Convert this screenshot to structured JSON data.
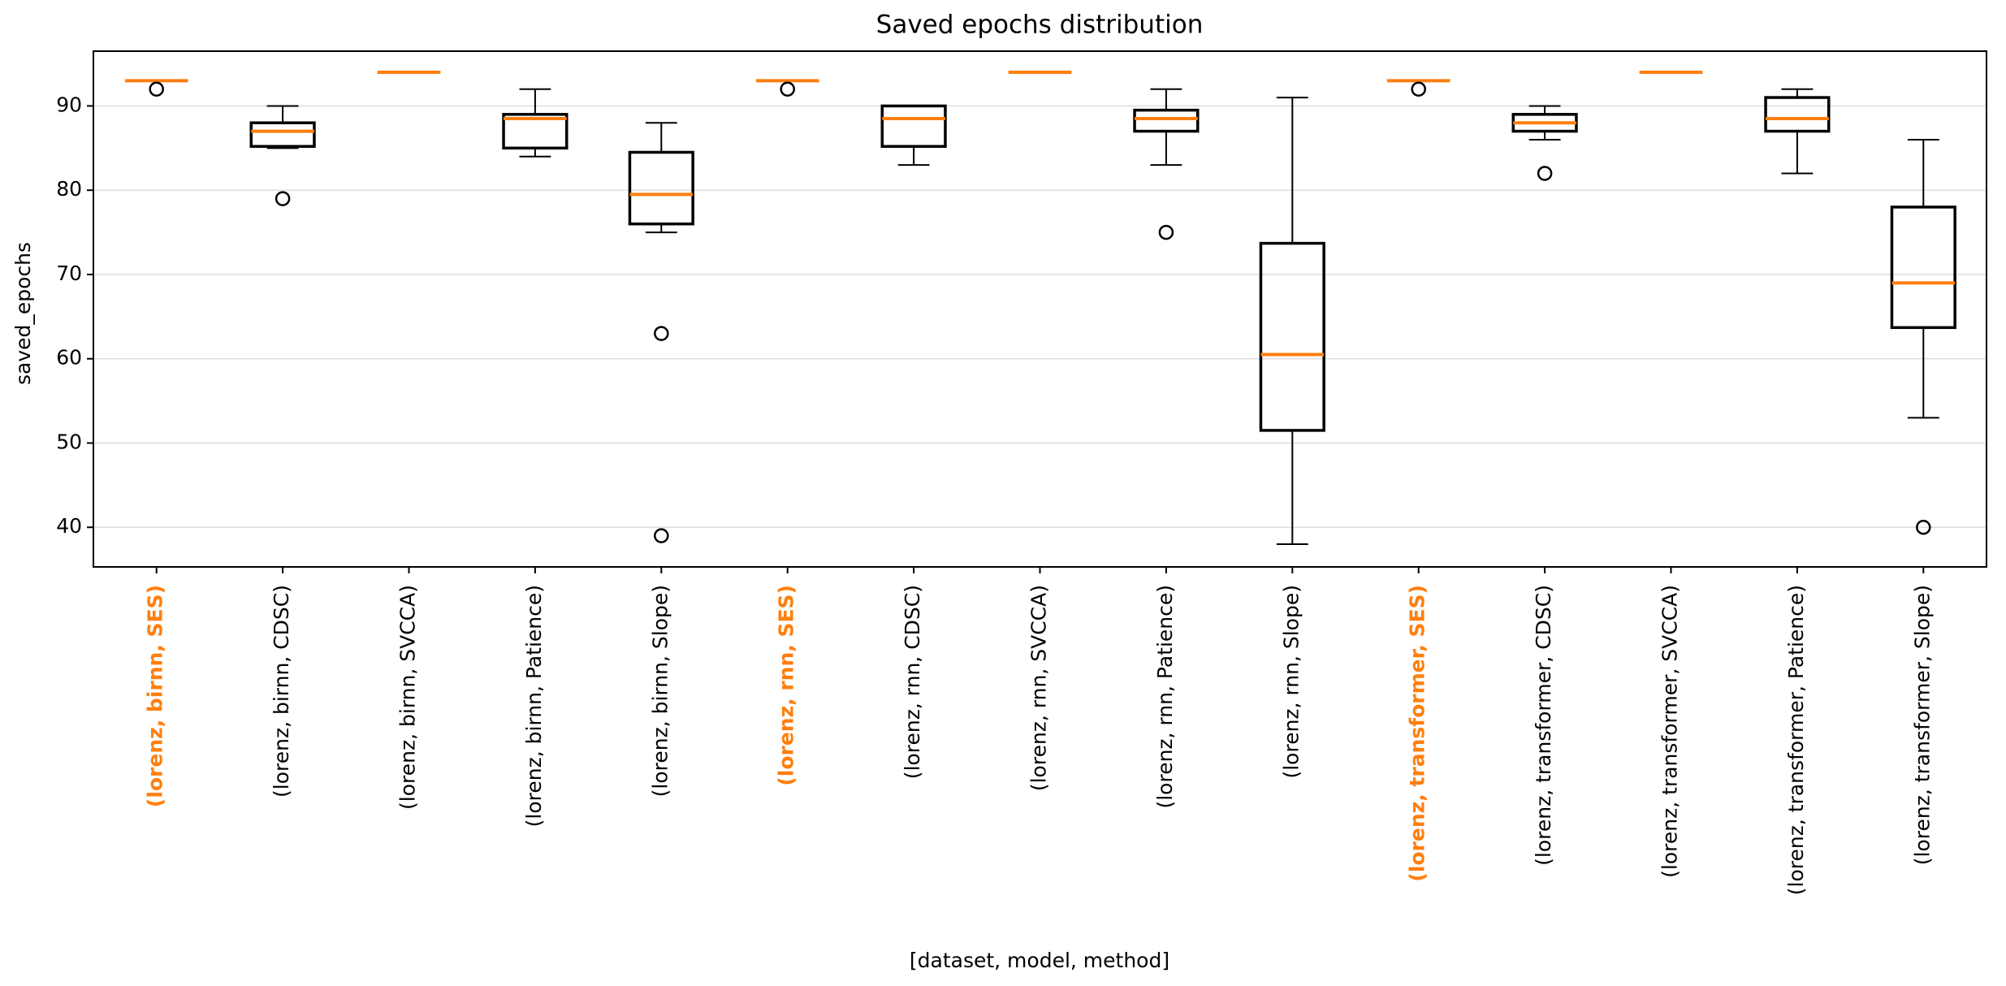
{
  "chart_data": {
    "type": "box",
    "title": "Saved epochs distribution",
    "x_label": "[dataset, model, method]",
    "y_label": "saved_epochs",
    "categories": [
      "(lorenz, birnn, SES)",
      "(lorenz, birnn, CDSC)",
      "(lorenz, birnn, SVCCA)",
      "(lorenz, birnn, Patience)",
      "(lorenz, birnn, Slope)",
      "(lorenz, rnn, SES)",
      "(lorenz, rnn, CDSC)",
      "(lorenz, rnn, SVCCA)",
      "(lorenz, rnn, Patience)",
      "(lorenz, rnn, Slope)",
      "(lorenz, transformer, SES)",
      "(lorenz, transformer, CDSC)",
      "(lorenz, transformer, SVCCA)",
      "(lorenz, transformer, Patience)",
      "(lorenz, transformer, Slope)"
    ],
    "label_colors": [
      "#ff7f0e",
      "#000000",
      "#000000",
      "#000000",
      "#000000",
      "#ff7f0e",
      "#000000",
      "#000000",
      "#000000",
      "#000000",
      "#ff7f0e",
      "#000000",
      "#000000",
      "#000000",
      "#000000"
    ],
    "label_weights": [
      "bold",
      "normal",
      "normal",
      "normal",
      "normal",
      "bold",
      "normal",
      "normal",
      "normal",
      "normal",
      "bold",
      "normal",
      "normal",
      "normal",
      "normal"
    ],
    "boxes": [
      {
        "whislo": 93,
        "q1": 93,
        "med": 93,
        "q3": 93,
        "whishi": 93,
        "fliers": [
          92
        ]
      },
      {
        "whislo": 85,
        "q1": 85.2,
        "med": 87,
        "q3": 88,
        "whishi": 90,
        "fliers": [
          79
        ]
      },
      {
        "whislo": 94,
        "q1": 94,
        "med": 94,
        "q3": 94,
        "whishi": 94,
        "fliers": []
      },
      {
        "whislo": 84,
        "q1": 85,
        "med": 88.5,
        "q3": 89,
        "whishi": 92,
        "fliers": []
      },
      {
        "whislo": 75,
        "q1": 76,
        "med": 79.5,
        "q3": 84.5,
        "whishi": 88,
        "fliers": [
          63,
          39
        ]
      },
      {
        "whislo": 93,
        "q1": 93,
        "med": 93,
        "q3": 93,
        "whishi": 93,
        "fliers": [
          92
        ]
      },
      {
        "whislo": 83,
        "q1": 85.2,
        "med": 88.5,
        "q3": 90,
        "whishi": 90,
        "fliers": []
      },
      {
        "whislo": 94,
        "q1": 94,
        "med": 94,
        "q3": 94,
        "whishi": 94,
        "fliers": []
      },
      {
        "whislo": 83,
        "q1": 87,
        "med": 88.5,
        "q3": 89.5,
        "whishi": 92,
        "fliers": [
          75
        ]
      },
      {
        "whislo": 38,
        "q1": 51.5,
        "med": 60.5,
        "q3": 73.7,
        "whishi": 91,
        "fliers": []
      },
      {
        "whislo": 93,
        "q1": 93,
        "med": 93,
        "q3": 93,
        "whishi": 93,
        "fliers": [
          92
        ]
      },
      {
        "whislo": 86,
        "q1": 87,
        "med": 88,
        "q3": 89,
        "whishi": 90,
        "fliers": [
          82
        ]
      },
      {
        "whislo": 94,
        "q1": 94,
        "med": 94,
        "q3": 94,
        "whishi": 94,
        "fliers": []
      },
      {
        "whislo": 82,
        "q1": 87,
        "med": 88.5,
        "q3": 91,
        "whishi": 92,
        "fliers": []
      },
      {
        "whislo": 53,
        "q1": 63.7,
        "med": 69,
        "q3": 78,
        "whishi": 86,
        "fliers": [
          40
        ]
      }
    ],
    "box_color": "#000000",
    "median_color": "#ff7f0e",
    "ylim": [
      35.3,
      96.5
    ],
    "yticks": [
      40,
      50,
      60,
      70,
      80,
      90
    ],
    "grid": true
  }
}
